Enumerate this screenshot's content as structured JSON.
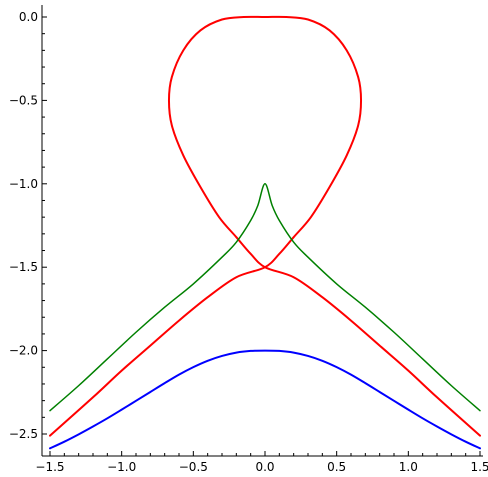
{
  "chart_data": {
    "type": "line",
    "title": "",
    "xlabel": "",
    "ylabel": "",
    "xlim": [
      -1.5,
      1.5
    ],
    "ylim": [
      -2.63,
      0.05
    ],
    "grid": false,
    "legend": "none",
    "xticks": [
      -1.5,
      -1.0,
      -0.5,
      0.0,
      0.5,
      1.0,
      1.5
    ],
    "xtick_labels": [
      "−1.5",
      "−1.0",
      "−0.5",
      "0.0",
      "0.5",
      "1.0",
      "1.5"
    ],
    "yticks": [
      0.0,
      -0.5,
      -1.0,
      -1.5,
      -2.0,
      -2.5
    ],
    "ytick_labels": [
      "0.0",
      "−0.5",
      "−1.0",
      "−1.5",
      "−2.0",
      "−2.5"
    ],
    "series": [
      {
        "color": "#0000ff",
        "points": [
          [
            -1.5,
            -2.586
          ],
          [
            -1.4,
            -2.546
          ],
          [
            -1.3,
            -2.502
          ],
          [
            -1.2,
            -2.455
          ],
          [
            -1.1,
            -2.406
          ],
          [
            -1.0,
            -2.354
          ],
          [
            -0.9,
            -2.301
          ],
          [
            -0.8,
            -2.248
          ],
          [
            -0.7,
            -2.195
          ],
          [
            -0.6,
            -2.144
          ],
          [
            -0.5,
            -2.099
          ],
          [
            -0.4,
            -2.061
          ],
          [
            -0.3,
            -2.032
          ],
          [
            -0.2,
            -2.012
          ],
          [
            -0.1,
            -2.002
          ],
          [
            0.0,
            -2.0
          ],
          [
            0.1,
            -2.002
          ],
          [
            0.2,
            -2.012
          ],
          [
            0.3,
            -2.032
          ],
          [
            0.4,
            -2.061
          ],
          [
            0.5,
            -2.099
          ],
          [
            0.6,
            -2.144
          ],
          [
            0.7,
            -2.195
          ],
          [
            0.8,
            -2.248
          ],
          [
            0.9,
            -2.301
          ],
          [
            1.0,
            -2.354
          ],
          [
            1.1,
            -2.406
          ],
          [
            1.2,
            -2.455
          ],
          [
            1.3,
            -2.502
          ],
          [
            1.4,
            -2.546
          ],
          [
            1.5,
            -2.586
          ]
        ]
      },
      {
        "color": "#ff0000",
        "points": [
          [
            -1.5,
            -2.51
          ],
          [
            -1.2,
            -2.28
          ],
          [
            -1.0,
            -2.12
          ],
          [
            -0.8,
            -1.97
          ],
          [
            -0.6,
            -1.82
          ],
          [
            -0.4,
            -1.68
          ],
          [
            -0.2,
            -1.56
          ],
          [
            0.0,
            -1.5
          ],
          [
            0.1,
            -1.42
          ],
          [
            0.2,
            -1.32
          ],
          [
            0.32,
            -1.2
          ],
          [
            0.45,
            -1.02
          ],
          [
            0.57,
            -0.83
          ],
          [
            0.65,
            -0.65
          ],
          [
            0.67,
            -0.5
          ],
          [
            0.65,
            -0.36
          ],
          [
            0.57,
            -0.2
          ],
          [
            0.45,
            -0.08
          ],
          [
            0.3,
            -0.015
          ],
          [
            0.15,
            0.0
          ],
          [
            0.0,
            0.0
          ],
          [
            -0.15,
            0.0
          ],
          [
            -0.3,
            -0.015
          ],
          [
            -0.45,
            -0.08
          ],
          [
            -0.57,
            -0.2
          ],
          [
            -0.65,
            -0.36
          ],
          [
            -0.67,
            -0.5
          ],
          [
            -0.65,
            -0.65
          ],
          [
            -0.57,
            -0.83
          ],
          [
            -0.45,
            -1.02
          ],
          [
            -0.32,
            -1.2
          ],
          [
            -0.2,
            -1.32
          ],
          [
            -0.1,
            -1.42
          ],
          [
            0.0,
            -1.5
          ],
          [
            0.2,
            -1.56
          ],
          [
            0.4,
            -1.68
          ],
          [
            0.6,
            -1.82
          ],
          [
            0.8,
            -1.97
          ],
          [
            1.0,
            -2.12
          ],
          [
            1.2,
            -2.28
          ],
          [
            1.5,
            -2.51
          ]
        ]
      },
      {
        "color": "#008000",
        "points": [
          [
            -1.5,
            -2.36
          ],
          [
            -1.3,
            -2.21
          ],
          [
            -1.1,
            -2.05
          ],
          [
            -0.9,
            -1.89
          ],
          [
            -0.7,
            -1.74
          ],
          [
            -0.5,
            -1.6
          ],
          [
            -0.3,
            -1.44
          ],
          [
            -0.2,
            -1.35
          ],
          [
            -0.1,
            -1.22
          ],
          [
            -0.05,
            -1.13
          ],
          [
            0.0,
            -1.0
          ],
          [
            0.05,
            -1.13
          ],
          [
            0.1,
            -1.22
          ],
          [
            0.2,
            -1.35
          ],
          [
            0.3,
            -1.44
          ],
          [
            0.5,
            -1.6
          ],
          [
            0.7,
            -1.74
          ],
          [
            0.9,
            -1.89
          ],
          [
            1.1,
            -2.05
          ],
          [
            1.3,
            -2.21
          ],
          [
            1.5,
            -2.36
          ]
        ]
      }
    ]
  }
}
